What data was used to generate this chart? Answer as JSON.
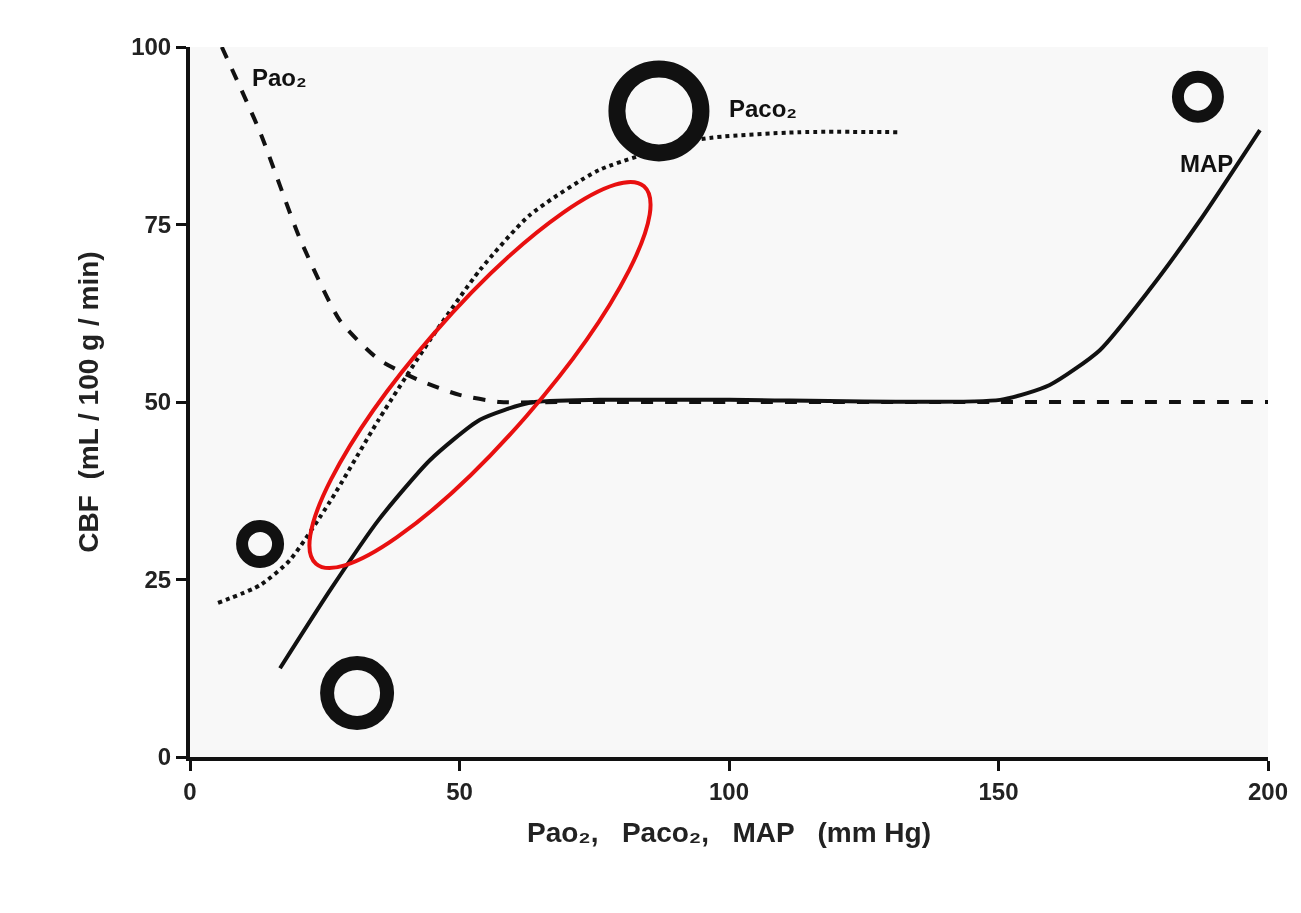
{
  "chart_data": {
    "type": "line",
    "xlabel": "Pao₂,   Paco₂,   MAP   (mm Hg)",
    "ylabel": "CBF  (mL / 100 g / min)",
    "xlim": [
      0,
      200
    ],
    "ylim": [
      0,
      100
    ],
    "xticks": [
      0,
      50,
      100,
      150,
      200
    ],
    "yticks": [
      0,
      25,
      50,
      75,
      100
    ],
    "grid": false,
    "legend": false,
    "marker": "none",
    "series": [
      {
        "name": "Pao₂",
        "color": "#111111",
        "line_style": "dashed",
        "x": [
          5.9,
          13,
          20.4,
          27.8,
          35,
          42.7,
          50,
          57.5,
          70,
          100,
          150,
          200
        ],
        "values": [
          100,
          88,
          73,
          61.5,
          56,
          53,
          51,
          50,
          50,
          50,
          50,
          50
        ]
      },
      {
        "name": "Paco₂",
        "color": "#111111",
        "line_style": "dotted",
        "x": [
          5.2,
          13,
          18.5,
          26,
          35,
          44.5,
          53.8,
          63,
          76,
          94.6,
          113,
          131.7
        ],
        "values": [
          21.7,
          24.2,
          27.7,
          36,
          47.5,
          58.7,
          68.6,
          76.3,
          82.7,
          87,
          88,
          88
        ]
      },
      {
        "name": "MAP",
        "color": "#111111",
        "line_style": "solid",
        "x": [
          16.7,
          26,
          35,
          44.5,
          53.8,
          63,
          76,
          100,
          150.3,
          159.5,
          168.8,
          178,
          187.4,
          198.5
        ],
        "values": [
          12.5,
          23.5,
          33.4,
          41.8,
          47.5,
          49.9,
          50.3,
          50.3,
          50.3,
          52.4,
          57.3,
          65.8,
          75.6,
          88.3
        ]
      }
    ]
  }
}
